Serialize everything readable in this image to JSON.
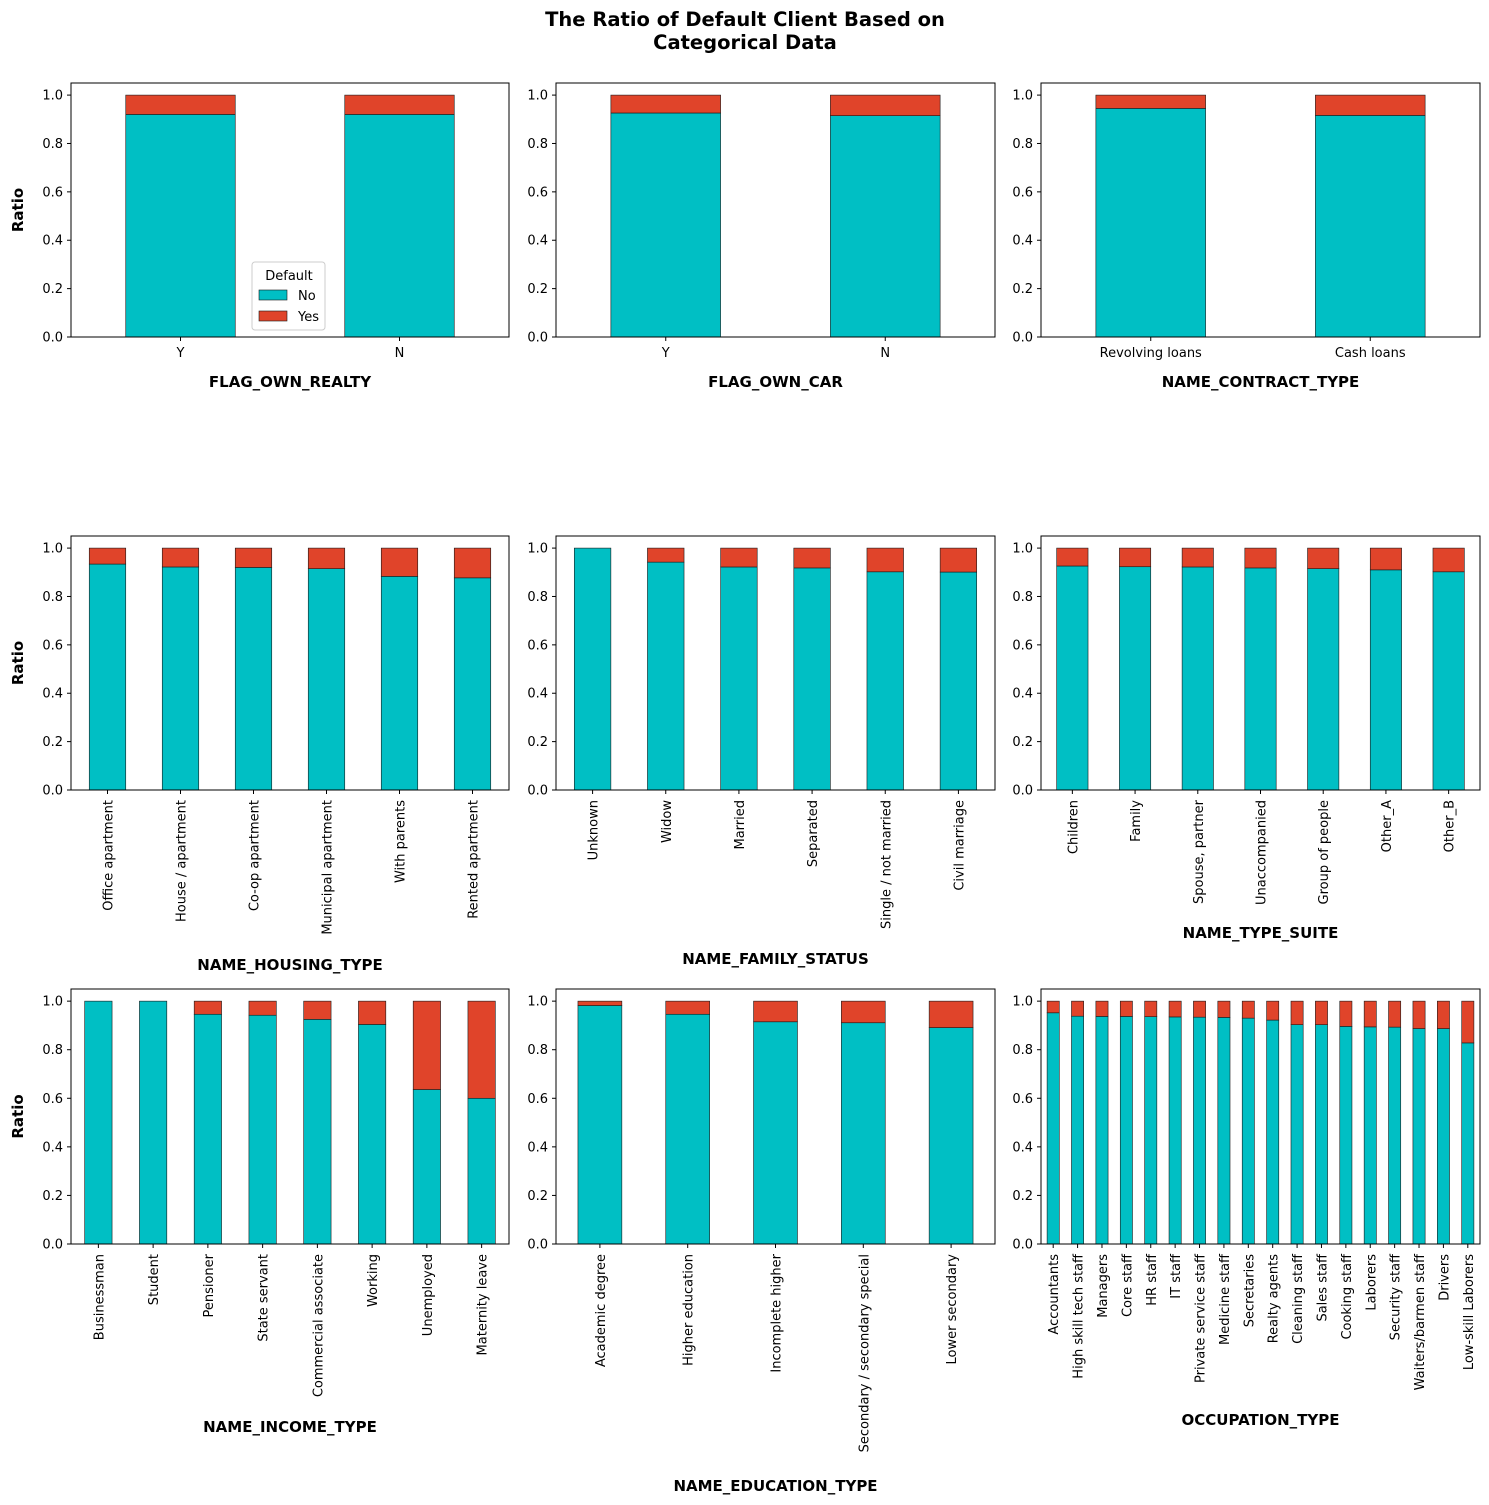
{
  "figure": {
    "title_line1": "The Ratio of Default Client Based on",
    "title_line2": "Categorical Data"
  },
  "colors": {
    "no": "#00BFC4",
    "yes": "#E0442A",
    "edge": "#1a1a1a"
  },
  "legend": {
    "title": "Default",
    "labels": [
      "No",
      "Yes"
    ],
    "placement": "lower center (first panel)"
  },
  "ylabel": "Ratio",
  "yticks": [
    "0.0",
    "0.2",
    "0.4",
    "0.6",
    "0.8",
    "1.0"
  ],
  "chart_data": [
    {
      "type": "bar",
      "stacked": true,
      "xlabel": "FLAG_OWN_REALTY",
      "ylabel": "Ratio",
      "ylim": [
        0,
        1.05
      ],
      "categories": [
        "Y",
        "N"
      ],
      "no": [
        0.92,
        0.92
      ],
      "rotate_labels": false,
      "legend": true
    },
    {
      "type": "bar",
      "stacked": true,
      "xlabel": "FLAG_OWN_CAR",
      "ylabel": "",
      "ylim": [
        0,
        1.05
      ],
      "categories": [
        "Y",
        "N"
      ],
      "no": [
        0.926,
        0.915
      ],
      "rotate_labels": false
    },
    {
      "type": "bar",
      "stacked": true,
      "xlabel": "NAME_CONTRACT_TYPE",
      "ylabel": "",
      "ylim": [
        0,
        1.05
      ],
      "categories": [
        "Revolving loans",
        "Cash loans"
      ],
      "no": [
        0.945,
        0.916
      ],
      "rotate_labels": false
    },
    {
      "type": "bar",
      "stacked": true,
      "xlabel": "NAME_HOUSING_TYPE",
      "ylabel": "Ratio",
      "ylim": [
        0,
        1.05
      ],
      "categories": [
        "Office apartment",
        "House / apartment",
        "Co-op apartment",
        "Municipal apartment",
        "With parents",
        "Rented apartment"
      ],
      "no": [
        0.934,
        0.922,
        0.92,
        0.915,
        0.883,
        0.877
      ],
      "rotate_labels": true
    },
    {
      "type": "bar",
      "stacked": true,
      "xlabel": "NAME_FAMILY_STATUS",
      "ylabel": "",
      "ylim": [
        0,
        1.05
      ],
      "categories": [
        "Unknown",
        "Widow",
        "Married",
        "Separated",
        "Single / not married",
        "Civil marriage"
      ],
      "no": [
        1.0,
        0.942,
        0.922,
        0.918,
        0.902,
        0.901
      ],
      "rotate_labels": true
    },
    {
      "type": "bar",
      "stacked": true,
      "xlabel": "NAME_TYPE_SUITE",
      "ylabel": "",
      "ylim": [
        0,
        1.05
      ],
      "categories": [
        "Children",
        "Family",
        "Spouse, partner",
        "Unaccompanied",
        "Group of people",
        "Other_A",
        "Other_B"
      ],
      "no": [
        0.926,
        0.923,
        0.922,
        0.918,
        0.915,
        0.91,
        0.902
      ],
      "rotate_labels": true
    },
    {
      "type": "bar",
      "stacked": true,
      "xlabel": "NAME_INCOME_TYPE",
      "ylabel": "Ratio",
      "ylim": [
        0,
        1.05
      ],
      "categories": [
        "Businessman",
        "Student",
        "Pensioner",
        "State servant",
        "Commercial associate",
        "Working",
        "Unemployed",
        "Maternity leave"
      ],
      "no": [
        1.0,
        1.0,
        0.946,
        0.942,
        0.925,
        0.904,
        0.636,
        0.6
      ],
      "rotate_labels": true
    },
    {
      "type": "bar",
      "stacked": true,
      "xlabel": "NAME_EDUCATION_TYPE",
      "ylabel": "",
      "ylim": [
        0,
        1.05
      ],
      "categories": [
        "Academic degree",
        "Higher education",
        "Incomplete higher",
        "Secondary / secondary special",
        "Lower secondary"
      ],
      "no": [
        0.982,
        0.946,
        0.915,
        0.911,
        0.891
      ],
      "rotate_labels": true
    },
    {
      "type": "bar",
      "stacked": true,
      "xlabel": "OCCUPATION_TYPE",
      "ylabel": "",
      "ylim": [
        0,
        1.05
      ],
      "categories": [
        "Accountants",
        "High skill tech staff",
        "Managers",
        "Core staff",
        "HR staff",
        "IT staff",
        "Private service staff",
        "Medicine staff",
        "Secretaries",
        "Realty agents",
        "Cleaning staff",
        "Sales staff",
        "Cooking staff",
        "Laborers",
        "Security staff",
        "Waiters/barmen staff",
        "Drivers",
        "Low-skill Laborers"
      ],
      "no": [
        0.952,
        0.938,
        0.937,
        0.937,
        0.936,
        0.935,
        0.934,
        0.933,
        0.93,
        0.922,
        0.903,
        0.903,
        0.896,
        0.894,
        0.893,
        0.887,
        0.887,
        0.828
      ],
      "rotate_labels": true
    }
  ]
}
